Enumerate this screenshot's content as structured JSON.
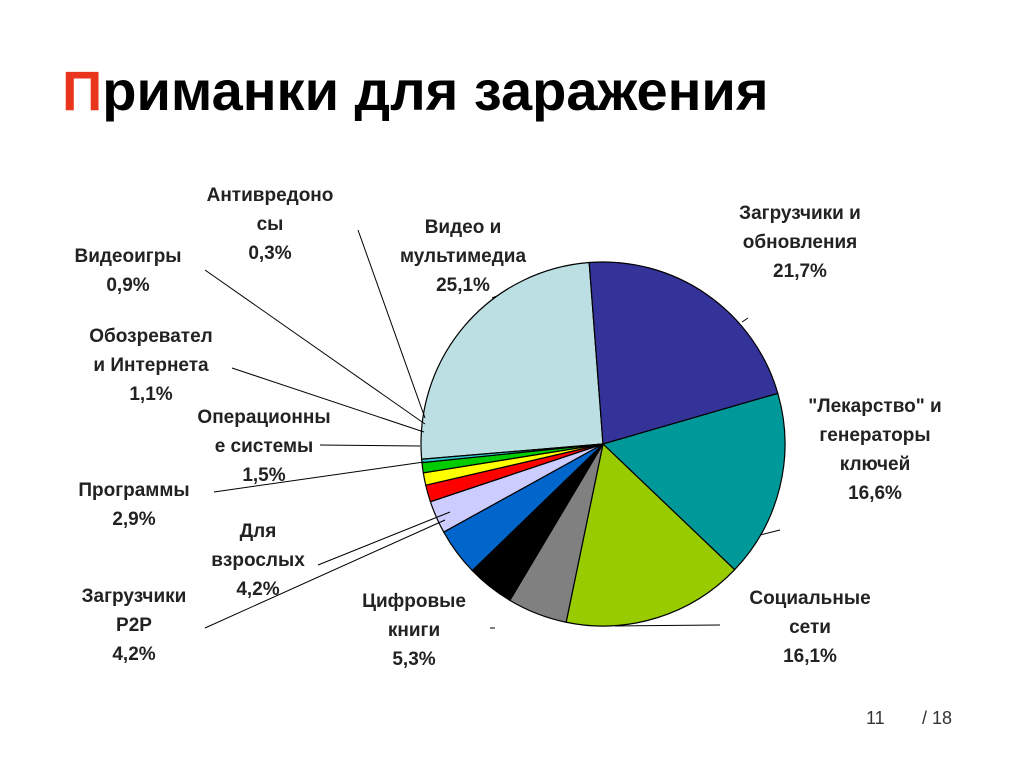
{
  "title": {
    "first": "П",
    "rest": "риманки для заражения"
  },
  "page": {
    "current": "11",
    "total": "/ 18"
  },
  "chart_data": {
    "type": "pie",
    "title": "Приманки для заражения",
    "slices": [
      {
        "label": [
          "Видео и",
          "мультимедиа"
        ],
        "value": 25.1,
        "text": "25,1%",
        "color": "#bcdfe3"
      },
      {
        "label": [
          "Загрузчики и",
          "обновления"
        ],
        "value": 21.7,
        "text": "21,7%",
        "color": "#333399"
      },
      {
        "label": [
          "\"Лекарство\" и",
          "генераторы",
          "ключей"
        ],
        "value": 16.6,
        "text": "16,6%",
        "color": "#009999"
      },
      {
        "label": [
          "Социальные",
          "сети"
        ],
        "value": 16.1,
        "text": "16,1%",
        "color": "#99cc00"
      },
      {
        "label": [
          "Цифровые",
          "книги"
        ],
        "value": 5.3,
        "text": "5,3%",
        "color": "#808080"
      },
      {
        "label": [
          "Для",
          "взрослых"
        ],
        "value": 4.2,
        "text": "4,2%",
        "color": "#000000"
      },
      {
        "label": [
          "Загрузчики",
          "P2P"
        ],
        "value": 4.2,
        "text": "4,2%",
        "color": "#0066cc"
      },
      {
        "label": [
          "Программы"
        ],
        "value": 2.9,
        "text": "2,9%",
        "color": "#ccccff"
      },
      {
        "label": [
          "Операционны",
          "е системы"
        ],
        "value": 1.5,
        "text": "1,5%",
        "color": "#ff0000"
      },
      {
        "label": [
          "Обозревател",
          "и Интернета"
        ],
        "value": 1.1,
        "text": "1,1%",
        "color": "#ffff00"
      },
      {
        "label": [
          "Видеоигры"
        ],
        "value": 0.9,
        "text": "0,9%",
        "color": "#00cc00"
      },
      {
        "label": [
          "Антивредоно",
          "сы"
        ],
        "value": 0.3,
        "text": "0,3%",
        "color": "#33cccc"
      }
    ]
  }
}
